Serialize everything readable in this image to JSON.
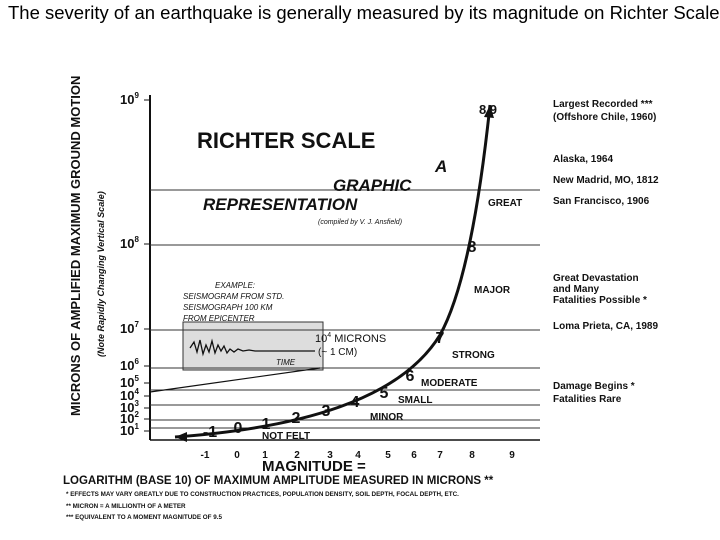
{
  "header": {
    "text": "The severity of an earthquake  is generally measured by its magnitude on Richter Scale:"
  },
  "figure": {
    "title": "RICHTER SCALE",
    "subtitle_lines": [
      "A",
      "GRAPHIC",
      "REPRESENTATION"
    ],
    "credit": "(compiled by V. J. Ansfield)",
    "y_axis_label": "MICRONS OF AMPLIFIED MAXIMUM GROUND MOTION",
    "y_axis_note": "(Note Rapidly Changing Vertical Scale)",
    "y_labels": [
      {
        "base": "10",
        "exp": "9"
      },
      {
        "base": "10",
        "exp": "8"
      },
      {
        "base": "10",
        "exp": "7"
      },
      {
        "base": "10",
        "exp": "6"
      },
      {
        "base": "10",
        "exp": "5"
      },
      {
        "base": "10",
        "exp": "4"
      },
      {
        "base": "10",
        "exp": "3"
      },
      {
        "base": "10",
        "exp": "2"
      },
      {
        "base": "10",
        "exp": "1"
      }
    ],
    "x_labels": [
      "-1",
      "0",
      "1",
      "2",
      "3",
      "4",
      "5",
      "6",
      "7",
      "8",
      "9"
    ],
    "curve_labels": [
      "-1",
      "0",
      "1",
      "2",
      "3",
      "4",
      "5",
      "6",
      "7",
      "8",
      "8.9"
    ],
    "zones": [
      "GREAT",
      "MAJOR",
      "STRONG",
      "MODERATE",
      "SMALL",
      "MINOR",
      "NOT FELT"
    ],
    "example": {
      "lines": [
        "EXAMPLE:",
        "SEISMOGRAM FROM STD.",
        "SEISMOGRAPH 100 KM",
        "FROM EPICENTER"
      ],
      "amplitude": {
        "base": "10",
        "exp": "4",
        "text": " MICRONS"
      },
      "approx": "(~ 1 CM)",
      "time": "TIME"
    },
    "events": [
      "Largest Recorded ***",
      "(Offshore Chile, 1960)",
      "Alaska, 1964",
      "New Madrid, MO, 1812",
      "San Francisco, 1906",
      "Great Devastation",
      "and Many",
      "Fatalities Possible *",
      "Loma Prieta, CA, 1989",
      "Damage Begins *",
      "Fatalities Rare"
    ],
    "magnitude_label": "MAGNITUDE =",
    "definition": "LOGARITHM (BASE 10) OF MAXIMUM AMPLITUDE MEASURED IN MICRONS **",
    "footnotes": [
      "* EFFECTS MAY VARY GREATLY DUE TO CONSTRUCTION PRACTICES, POPULATION DENSITY, SOIL DEPTH, FOCAL DEPTH, ETC.",
      "** MICRON = A MILLIONTH OF A METER",
      "*** EQUIVALENT TO A MOMENT MAGNITUDE OF 9.5"
    ]
  }
}
